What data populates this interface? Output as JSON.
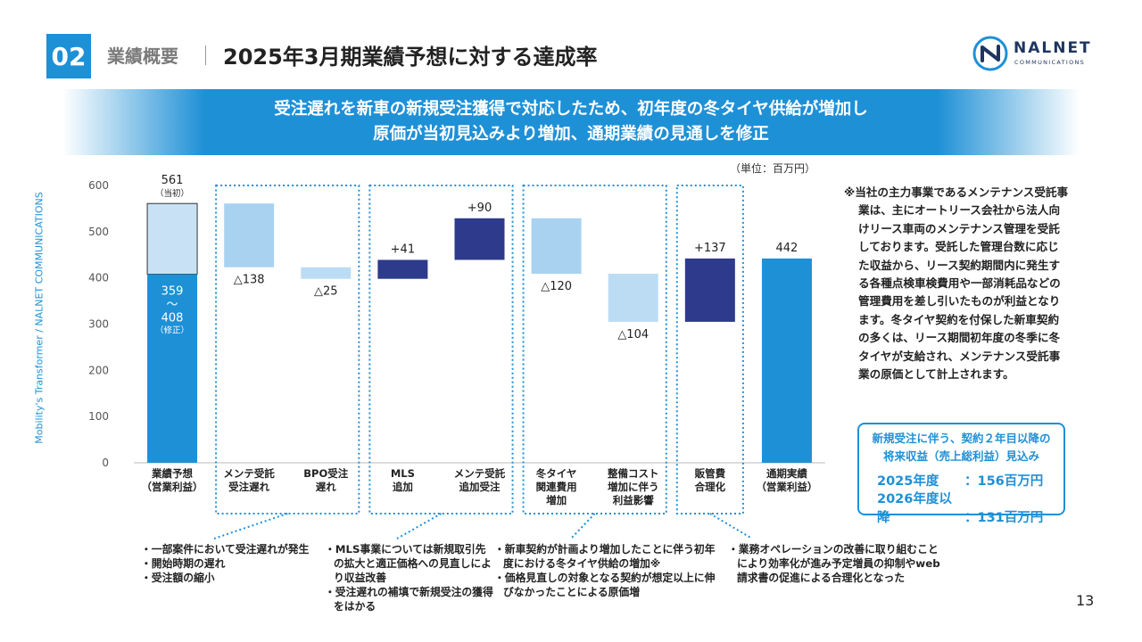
{
  "header": {
    "section_number": "02",
    "section_label": "業績概要",
    "title": "2025年3月期業績予想に対する達成率"
  },
  "logo": {
    "name": "NALNET",
    "sub": "COMMUNICATIONS"
  },
  "banner": {
    "line1": "受注遅れを新車の新規受注獲得で対応したため、初年度の冬タイヤ供給が増加し",
    "line2": "原価が当初見込みより増加、通期業績の見通しを修正"
  },
  "side_text": "Mobility's Transformer / NALNET COMMUNICATIONS",
  "unit_label": "（単位：百万円）",
  "chart_data": {
    "type": "waterfall",
    "ylim": [
      0,
      600
    ],
    "yticks": [
      0,
      100,
      200,
      300,
      400,
      500,
      600
    ],
    "categories": [
      [
        "業績予想",
        "（営業利益）"
      ],
      [
        "メンテ受託",
        "受注遅れ"
      ],
      [
        "BPO受注",
        "遅れ"
      ],
      [
        "MLS",
        "追加"
      ],
      [
        "メンテ受託",
        "追加受注"
      ],
      [
        "冬タイヤ",
        "関連費用",
        "増加"
      ],
      [
        "整備コスト",
        "増加に伴う",
        "利益影響"
      ],
      [
        "販管費",
        "合理化"
      ],
      [
        "通期実績",
        "（営業利益）"
      ]
    ],
    "bars": [
      {
        "kind": "forecast",
        "original": 561,
        "revised_low": 359,
        "revised_high": 408
      },
      {
        "kind": "decrease",
        "start": 561,
        "end": 423,
        "value": -138,
        "label": "△138"
      },
      {
        "kind": "decrease",
        "start": 423,
        "end": 398,
        "value": -25,
        "label": "△25"
      },
      {
        "kind": "increase",
        "start": 398,
        "end": 439,
        "value": 41,
        "label": "+41"
      },
      {
        "kind": "increase",
        "start": 439,
        "end": 529,
        "value": 90,
        "label": "+90"
      },
      {
        "kind": "decrease",
        "start": 529,
        "end": 409,
        "value": -120,
        "label": "△120"
      },
      {
        "kind": "decrease",
        "start": 409,
        "end": 305,
        "value": -104,
        "label": "△104"
      },
      {
        "kind": "increase",
        "start": 305,
        "end": 442,
        "value": 137,
        "label": "+137"
      },
      {
        "kind": "total",
        "value": 442,
        "label": "442"
      }
    ],
    "forecast_top_label": "561",
    "forecast_top_sub": "（当初）",
    "forecast_inner": [
      "359",
      "〜",
      "408"
    ],
    "forecast_inner_sub": "（修正）",
    "groups": [
      [
        1,
        2
      ],
      [
        3,
        4
      ],
      [
        5,
        6
      ],
      [
        7,
        7
      ]
    ],
    "colors": {
      "forecast_upper": "#c9e1f5",
      "forecast_lower": "#1e90d6",
      "total": "#1e90d6",
      "decrease_light": "#a9d2f0",
      "decrease_lighter": "#bcdcf4",
      "increase": "#2e3a8c",
      "axis_text": "#555555",
      "dotted": "#1e90d6"
    }
  },
  "note": "※当社の主力事業であるメンテナンス受託事業は、主にオートリース会社から法人向けリース車両のメンテナンス管理を受託しております。受託した管理台数に応じた収益から、リース契約期間内に発生する各種点検車検費用や一部消耗品などの管理費用を差し引いたものが利益となります。冬タイヤ契約を付保した新車契約の多くは、リース期間初年度の冬季に冬タイヤが支給され、メンテナンス受託事業の原価として計上されます。",
  "infobox": {
    "title_line1": "新規受注に伴う、契約２年目以降の",
    "title_line2": "将来収益（売上総利益）見込み",
    "row1_key": "2025年度",
    "row1_val": "：156百万円",
    "row2_key": "2026年度以降",
    "row2_val": "：131百万円"
  },
  "explanations": [
    [
      "・一部案件において受注遅れが発生",
      "・開始時期の遅れ",
      "・受注額の縮小"
    ],
    [
      "・MLS事業については新規取引先の拡大と適正価格への見直しにより収益改善",
      "・受注遅れの補填で新規受注の獲得をはかる"
    ],
    [
      "・新車契約が計画より増加したことに伴う初年度における冬タイヤ供給の増加※",
      "・価格見直しの対象となる契約が想定以上に伸びなかったことによる原価増"
    ],
    [
      "・業務オペレーションの改善に取り組むことにより効率化が進み予定増員の抑制やweb請求書の促進による合理化となった"
    ]
  ],
  "page_number": "13"
}
